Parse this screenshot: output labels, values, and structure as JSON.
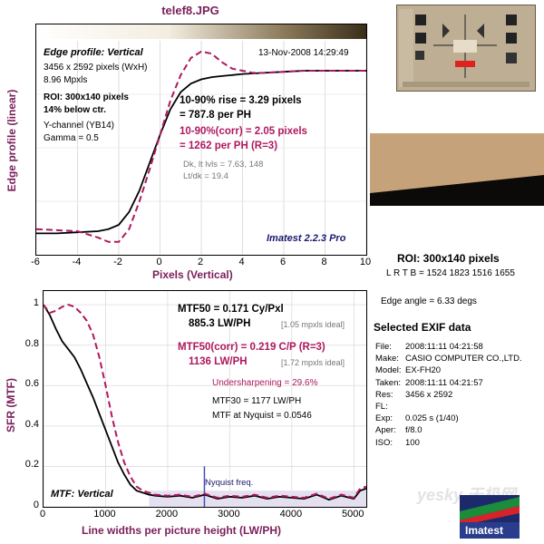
{
  "title": "telef8.JPG",
  "edge_panel": {
    "heading": "Edge profile: Vertical",
    "date": "13-Nov-2008 14:29:49",
    "lines": [
      "3456 x 2592 pixels (WxH)",
      "8.96 Mpxls"
    ],
    "roi_lines": [
      "ROI: 300x140 pixels",
      "14% below ctr."
    ],
    "channel_lines": [
      "Y-channel  (YB14)",
      "Gamma = 0.5"
    ],
    "rise_lines": [
      "10-90% rise = 3.29 pixels",
      "= 787.8 per PH"
    ],
    "corr_lines": [
      "10-90%(corr) = 2.05 pixels",
      "= 1262 per PH  (R=3)"
    ],
    "dk_lines": [
      "Dk, lt lvls = 7.63, 148",
      "Lt/dk = 19.4"
    ],
    "watermark": "Imatest 2.2.3 Pro"
  },
  "mtf_panel": {
    "mtf50_lines": [
      "MTF50 = 0.171 Cy/Pxl",
      "885.3 LW/PH"
    ],
    "mtf50_ideal": "[1.05 mpxls ideal]",
    "corr_lines": [
      "MTF50(corr) = 0.219 C/P  (R=3)",
      "1136 LW/PH"
    ],
    "corr_ideal": "[1.72 mpxls ideal]",
    "undersharpening": "Undersharpening = 29.6%",
    "mtf30": "MTF30 = 1177 LW/PH",
    "nyquist_mtf": "MTF at Nyquist = 0.0546",
    "nyquist_label": "Nyquist freq.",
    "caption": "MTF: Vertical"
  },
  "roi_box": {
    "title": "ROI: 300x140 pixels",
    "coords": "L R  T B = 1524 1823  1516 1655",
    "edge_angle": "Edge angle = 6.33 degs"
  },
  "exif": {
    "title": "Selected EXIF data",
    "rows": [
      {
        "label": "File:",
        "value": "2008:11:11 04:21:58"
      },
      {
        "label": "Make:",
        "value": "CASIO COMPUTER CO.,LTD."
      },
      {
        "label": "Model:",
        "value": "EX-FH20"
      },
      {
        "label": "Taken:",
        "value": "2008:11:11 04:21:57"
      },
      {
        "label": "Res:",
        "value": "3456 x 2592"
      },
      {
        "label": "FL:",
        "value": ""
      },
      {
        "label": "Exp:",
        "value": "0.025 s  (1/40)"
      },
      {
        "label": "Aper:",
        "value": "f/8.0"
      },
      {
        "label": "ISO:",
        "value": "100"
      }
    ]
  },
  "logo_text": "Imatest",
  "site_watermark": "yesky 天极网",
  "colors": {
    "corrected": "#b0185f",
    "measured": "#000000",
    "axis_label": "#7a1e5a",
    "nyquist": "#4a4ab8"
  },
  "chart_data": [
    {
      "type": "line",
      "title": "",
      "xlabel": "Pixels (Vertical)",
      "ylabel": "Edge profile (linear)",
      "xlim": [
        -6,
        10
      ],
      "ylim": [
        0,
        1
      ],
      "xticks": [
        -6,
        -4,
        -2,
        0,
        2,
        4,
        6,
        8,
        10
      ],
      "series": [
        {
          "style": "solid",
          "color": "#000000",
          "x": [
            -6,
            -5,
            -4,
            -3,
            -2.5,
            -2,
            -1.5,
            -1,
            -0.5,
            0,
            0.5,
            1,
            1.5,
            2,
            2.5,
            3,
            3.5,
            4,
            5,
            6,
            7,
            8,
            10
          ],
          "y": [
            0.1,
            0.1,
            0.105,
            0.11,
            0.12,
            0.14,
            0.2,
            0.3,
            0.43,
            0.56,
            0.68,
            0.76,
            0.8,
            0.82,
            0.83,
            0.835,
            0.84,
            0.845,
            0.85,
            0.855,
            0.86,
            0.86,
            0.86
          ]
        },
        {
          "style": "dashed",
          "color": "#b0185f",
          "x": [
            -6,
            -5,
            -4,
            -3,
            -2.5,
            -2,
            -1.5,
            -1,
            -0.5,
            0,
            0.5,
            1,
            1.5,
            2,
            2.5,
            3,
            3.5,
            4,
            4.5,
            5,
            6,
            7,
            8,
            10
          ],
          "y": [
            0.12,
            0.115,
            0.11,
            0.08,
            0.06,
            0.06,
            0.12,
            0.25,
            0.4,
            0.56,
            0.72,
            0.84,
            0.92,
            0.95,
            0.94,
            0.9,
            0.87,
            0.86,
            0.85,
            0.85,
            0.855,
            0.86,
            0.86,
            0.86
          ]
        }
      ]
    },
    {
      "type": "line",
      "title": "",
      "xlabel": "Line widths per picture height (LW/PH)",
      "ylabel": "SFR (MTF)",
      "xlim": [
        0,
        5200
      ],
      "ylim": [
        0,
        1.05
      ],
      "xticks": [
        0,
        1000,
        2000,
        3000,
        4000,
        5000
      ],
      "yticks": [
        0,
        0.2,
        0.4,
        0.6,
        0.8,
        1
      ],
      "nyquist_x": 2592,
      "series": [
        {
          "style": "solid",
          "color": "#000000",
          "x": [
            0,
            100,
            200,
            300,
            400,
            500,
            600,
            700,
            800,
            900,
            1000,
            1100,
            1200,
            1300,
            1400,
            1500,
            1600,
            1700,
            1800,
            2000,
            2200,
            2400,
            2600,
            2800,
            3000,
            3200,
            3400,
            3600,
            3800,
            4000,
            4200,
            4400,
            4600,
            4800,
            5000,
            5100,
            5200
          ],
          "y": [
            1,
            0.95,
            0.88,
            0.82,
            0.78,
            0.74,
            0.68,
            0.61,
            0.54,
            0.46,
            0.38,
            0.3,
            0.22,
            0.16,
            0.11,
            0.08,
            0.07,
            0.06,
            0.055,
            0.05,
            0.055,
            0.045,
            0.06,
            0.04,
            0.05,
            0.045,
            0.055,
            0.04,
            0.05,
            0.045,
            0.04,
            0.06,
            0.035,
            0.055,
            0.04,
            0.08,
            0.09
          ]
        },
        {
          "style": "dashed",
          "color": "#b0185f",
          "x": [
            0,
            100,
            200,
            300,
            400,
            500,
            600,
            700,
            800,
            900,
            1000,
            1100,
            1200,
            1300,
            1400,
            1500,
            1600,
            1700,
            1800,
            2000,
            2200,
            2400,
            2600,
            2800,
            3000,
            3200,
            3400,
            3600,
            3800,
            4000,
            4200,
            4400,
            4600,
            4800,
            5000,
            5100,
            5200
          ],
          "y": [
            1,
            0.96,
            0.97,
            0.99,
            1.0,
            0.99,
            0.96,
            0.92,
            0.85,
            0.74,
            0.6,
            0.45,
            0.32,
            0.22,
            0.15,
            0.1,
            0.08,
            0.07,
            0.06,
            0.055,
            0.06,
            0.05,
            0.065,
            0.045,
            0.055,
            0.05,
            0.06,
            0.045,
            0.055,
            0.05,
            0.045,
            0.065,
            0.04,
            0.06,
            0.045,
            0.09,
            0.1
          ]
        }
      ]
    }
  ]
}
